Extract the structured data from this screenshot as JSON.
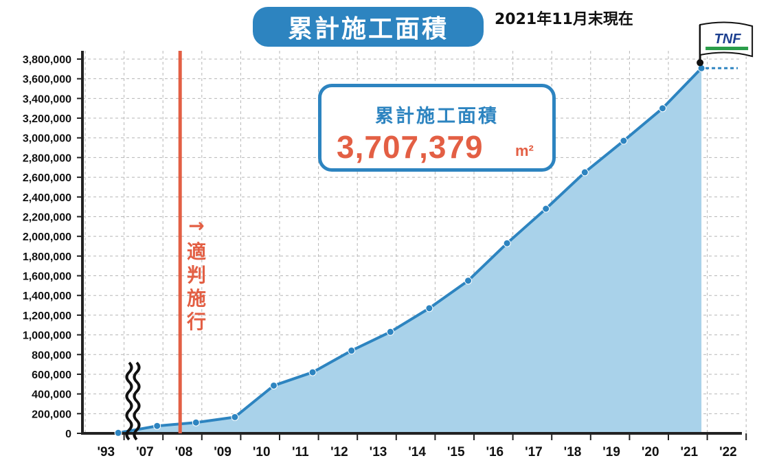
{
  "header": {
    "title": "累計施工面積",
    "as_of": "2021年11月末現在"
  },
  "callout": {
    "title": "累計施工面積",
    "value": "3,707,379",
    "unit": "m²"
  },
  "annotation": {
    "law_label": "適判施行",
    "arrow_glyph": "→"
  },
  "logo": {
    "text": "TNF"
  },
  "colors": {
    "accent_blue": "#2d84c0",
    "area_fill": "#a9d2ea",
    "accent_red": "#e35f44",
    "grid": "#b5b5b5",
    "axis": "#222222"
  },
  "chart_data": {
    "type": "area",
    "title": "累計施工面積",
    "xlabel": "",
    "ylabel": "",
    "x_ticks": [
      "'93",
      "'07",
      "'08",
      "'09",
      "'10",
      "'11",
      "'12",
      "'13",
      "'14",
      "'15",
      "'16",
      "'17",
      "'18",
      "'19",
      "'20",
      "'21",
      "'22"
    ],
    "y_ticks": [
      0,
      200000,
      400000,
      600000,
      800000,
      1000000,
      1200000,
      1400000,
      1600000,
      1800000,
      2000000,
      2200000,
      2400000,
      2600000,
      2800000,
      3000000,
      3200000,
      3400000,
      3600000,
      3800000
    ],
    "y_tick_labels": [
      "0",
      "200,000",
      "400,000",
      "600,000",
      "800,000",
      "1,000,000",
      "1,200,000",
      "1,400,000",
      "1,600,000",
      "1,800,000",
      "2,000,000",
      "2,200,000",
      "2,400,000",
      "2,600,000",
      "2,800,000",
      "3,000,000",
      "3,200,000",
      "3,400,000",
      "3,600,000",
      "3,800,000"
    ],
    "ylim": [
      0,
      3800000
    ],
    "axis_break_after": "'93",
    "grid": true,
    "series": [
      {
        "name": "",
        "x": [
          "'93",
          "'07",
          "'08",
          "'09",
          "'10",
          "'11",
          "'12",
          "'13",
          "'14",
          "'15",
          "'16",
          "'17",
          "'18",
          "'19",
          "'20",
          "'21"
        ],
        "values": [
          5000,
          75000,
          110000,
          165000,
          485000,
          620000,
          840000,
          1030000,
          1270000,
          1550000,
          1930000,
          2280000,
          2650000,
          2970000,
          3300000,
          3707379
        ]
      }
    ],
    "vertical_marker": {
      "after": "'07",
      "label": "適判施行"
    },
    "latest_value": 3707379
  }
}
